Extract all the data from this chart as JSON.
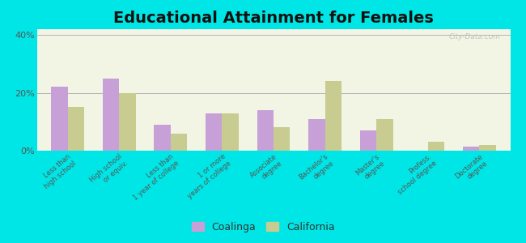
{
  "title": "Educational Attainment for Females",
  "categories": [
    "Less than\nhigh school",
    "High school\nor equiv.",
    "Less than\n1 year of college",
    "1 or more\nyears of college",
    "Associate\ndegree",
    "Bachelor's\ndegree",
    "Master's\ndegree",
    "Profess.\nschool degree",
    "Doctorate\ndegree"
  ],
  "coalinga": [
    22,
    25,
    9,
    13,
    14,
    11,
    7,
    0,
    1.5
  ],
  "california": [
    15,
    20,
    6,
    13,
    8,
    24,
    11,
    3,
    2
  ],
  "coalinga_color": "#c8a0d8",
  "california_color": "#c8cc90",
  "bg_color": "#00e5e5",
  "plot_bg": "#f2f5e4",
  "ylabel_ticks": [
    "0%",
    "20%",
    "40%"
  ],
  "yticks": [
    0,
    20,
    40
  ],
  "ylim": [
    0,
    42
  ],
  "title_fontsize": 14,
  "watermark": "City-Data.com"
}
